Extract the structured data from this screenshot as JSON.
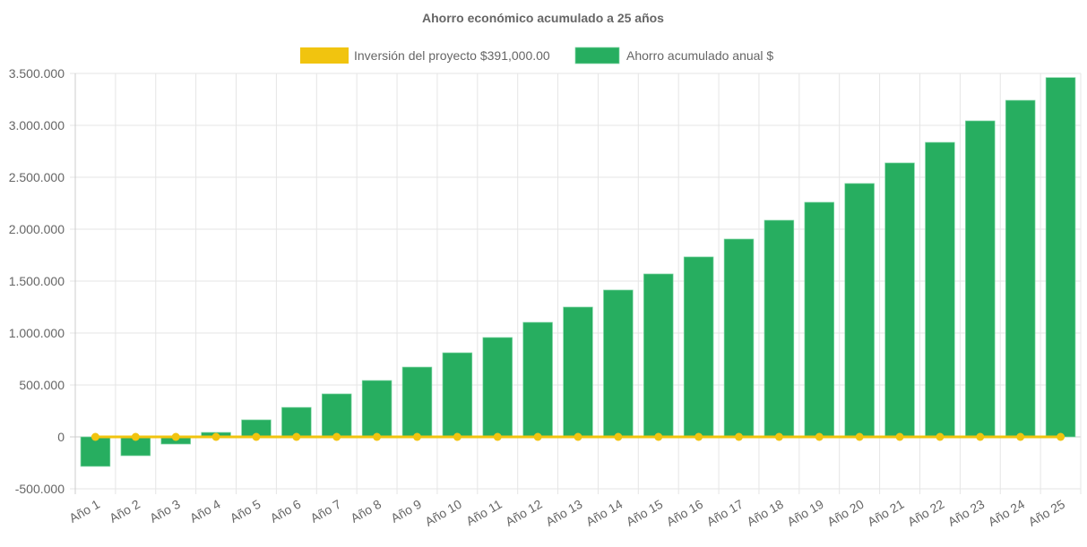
{
  "chart_data": {
    "type": "bar",
    "title": "Ahorro económico acumulado a 25 años",
    "legend_position": "top",
    "grid": true,
    "categories": [
      "Año 1",
      "Año 2",
      "Año 3",
      "Año 4",
      "Año 5",
      "Año 6",
      "Año 7",
      "Año 8",
      "Año 9",
      "Año 10",
      "Año 11",
      "Año 12",
      "Año 13",
      "Año 14",
      "Año 15",
      "Año 16",
      "Año 17",
      "Año 18",
      "Año 19",
      "Año 20",
      "Año 21",
      "Año 22",
      "Año 23",
      "Año 24",
      "Año 25"
    ],
    "ylim": [
      -500000,
      3500000
    ],
    "yticks": [
      -500000,
      0,
      500000,
      1000000,
      1500000,
      2000000,
      2500000,
      3000000,
      3500000
    ],
    "ytick_labels": [
      "-500.000",
      "0",
      "500.000",
      "1.000.000",
      "1.500.000",
      "2.000.000",
      "2.500.000",
      "3.000.000",
      "3.500.000"
    ],
    "series": [
      {
        "name": "Inversión del proyecto $391,000.00",
        "type": "line",
        "color": "#f1c40f",
        "values": [
          0,
          0,
          0,
          0,
          0,
          0,
          0,
          0,
          0,
          0,
          0,
          0,
          0,
          0,
          0,
          0,
          0,
          0,
          0,
          0,
          0,
          0,
          0,
          0,
          0
        ]
      },
      {
        "name": "Ahorro acumulado anual $",
        "type": "bar",
        "color": "#27ae60",
        "values": [
          -284000,
          -181000,
          -69000,
          43000,
          164000,
          284000,
          414000,
          543000,
          672000,
          810000,
          957000,
          1103000,
          1250000,
          1414000,
          1569000,
          1733000,
          1905000,
          2086000,
          2259000,
          2440000,
          2638000,
          2836000,
          3043000,
          3241000,
          3460000
        ]
      }
    ]
  }
}
